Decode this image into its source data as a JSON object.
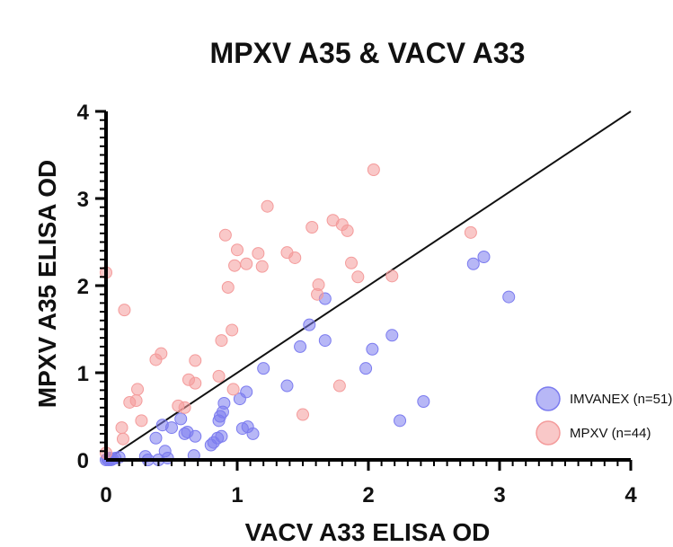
{
  "chart_data": {
    "type": "scatter",
    "title": "MPXV A35 & VACV A33",
    "xlabel": "VACV A33 ELISA OD",
    "ylabel": "MPXV A35 ELISA OD",
    "xlim": [
      0,
      4
    ],
    "ylim": [
      0,
      4
    ],
    "xticks": [
      "0",
      "1",
      "2",
      "3",
      "4"
    ],
    "yticks": [
      "0",
      "1",
      "2",
      "3",
      "4"
    ],
    "grid": false,
    "legend_position": "bottom-right",
    "reference_line": {
      "from": [
        0,
        0
      ],
      "to": [
        4,
        4
      ]
    },
    "series": [
      {
        "name": "IMVANEX (n=51)",
        "color": "#7b7bef",
        "points": [
          [
            0.0,
            0.0
          ],
          [
            0.01,
            0.01
          ],
          [
            0.02,
            0.0
          ],
          [
            0.03,
            0.02
          ],
          [
            0.04,
            0.0
          ],
          [
            0.05,
            0.01
          ],
          [
            0.07,
            0.02
          ],
          [
            0.1,
            0.03
          ],
          [
            0.3,
            0.04
          ],
          [
            0.32,
            0.0
          ],
          [
            0.38,
            0.25
          ],
          [
            0.4,
            0.0
          ],
          [
            0.43,
            0.4
          ],
          [
            0.45,
            0.1
          ],
          [
            0.47,
            0.02
          ],
          [
            0.5,
            0.37
          ],
          [
            0.57,
            0.47
          ],
          [
            0.6,
            0.3
          ],
          [
            0.62,
            0.32
          ],
          [
            0.67,
            0.05
          ],
          [
            0.68,
            0.27
          ],
          [
            0.8,
            0.17
          ],
          [
            0.82,
            0.2
          ],
          [
            0.85,
            0.25
          ],
          [
            0.86,
            0.45
          ],
          [
            0.87,
            0.5
          ],
          [
            0.88,
            0.27
          ],
          [
            0.89,
            0.55
          ],
          [
            0.9,
            0.65
          ],
          [
            1.02,
            0.7
          ],
          [
            1.04,
            0.36
          ],
          [
            1.07,
            0.78
          ],
          [
            1.08,
            0.38
          ],
          [
            1.12,
            0.3
          ],
          [
            1.2,
            1.05
          ],
          [
            1.38,
            0.85
          ],
          [
            1.48,
            1.3
          ],
          [
            1.55,
            1.55
          ],
          [
            1.67,
            1.37
          ],
          [
            1.67,
            1.85
          ],
          [
            1.98,
            1.05
          ],
          [
            2.03,
            1.27
          ],
          [
            2.18,
            1.43
          ],
          [
            2.24,
            0.45
          ],
          [
            2.42,
            0.67
          ],
          [
            2.8,
            2.25
          ],
          [
            2.88,
            2.33
          ],
          [
            3.07,
            1.87
          ]
        ]
      },
      {
        "name": "MPXV (n=44)",
        "color": "#f49b9b",
        "points": [
          [
            0.0,
            2.15
          ],
          [
            0.0,
            0.08
          ],
          [
            0.12,
            0.37
          ],
          [
            0.13,
            0.24
          ],
          [
            0.14,
            1.72
          ],
          [
            0.18,
            0.66
          ],
          [
            0.23,
            0.68
          ],
          [
            0.24,
            0.81
          ],
          [
            0.27,
            0.45
          ],
          [
            0.38,
            1.15
          ],
          [
            0.42,
            1.22
          ],
          [
            0.55,
            0.62
          ],
          [
            0.6,
            0.6
          ],
          [
            0.63,
            0.92
          ],
          [
            0.68,
            0.88
          ],
          [
            0.68,
            1.14
          ],
          [
            0.86,
            0.96
          ],
          [
            0.88,
            1.37
          ],
          [
            0.91,
            2.58
          ],
          [
            0.93,
            1.98
          ],
          [
            0.96,
            1.49
          ],
          [
            0.97,
            0.81
          ],
          [
            0.98,
            2.23
          ],
          [
            1.0,
            2.41
          ],
          [
            1.07,
            2.25
          ],
          [
            1.16,
            2.37
          ],
          [
            1.19,
            2.22
          ],
          [
            1.23,
            2.91
          ],
          [
            1.38,
            2.38
          ],
          [
            1.44,
            2.32
          ],
          [
            1.5,
            0.52
          ],
          [
            1.57,
            2.67
          ],
          [
            1.61,
            1.9
          ],
          [
            1.62,
            2.01
          ],
          [
            1.73,
            2.75
          ],
          [
            1.78,
            0.85
          ],
          [
            1.8,
            2.7
          ],
          [
            1.84,
            2.63
          ],
          [
            1.87,
            2.26
          ],
          [
            1.92,
            2.1
          ],
          [
            2.04,
            3.33
          ],
          [
            2.18,
            2.11
          ],
          [
            2.78,
            2.61
          ]
        ]
      }
    ]
  }
}
